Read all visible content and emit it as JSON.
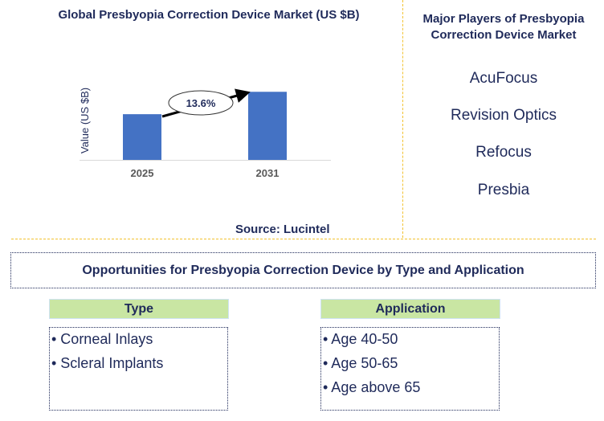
{
  "chart_data": {
    "type": "bar",
    "title": "Global Presbyopia Correction Device Market (US $B)",
    "ylabel": "Value (US $B)",
    "xlabel": "",
    "categories": [
      "2025",
      "2031"
    ],
    "values": [
      1.0,
      1.49
    ],
    "ylim": [
      0,
      1.6
    ],
    "annotation": "13.6%",
    "source": "Source: Lucintel",
    "bar_color": "#4472c4"
  },
  "players": {
    "title": "Major Players of Presbyopia Correction Device Market",
    "items": [
      "AcuFocus",
      "Revision Optics",
      "Refocus",
      "Presbia"
    ]
  },
  "opportunities": {
    "title": "Opportunities for Presbyopia Correction Device by Type and Application",
    "type": {
      "label": "Type",
      "items": [
        "• Corneal Inlays",
        "• Scleral Implants"
      ]
    },
    "application": {
      "label": "Application",
      "items": [
        "• Age 40-50",
        "• Age 50-65",
        "• Age above 65"
      ]
    }
  }
}
